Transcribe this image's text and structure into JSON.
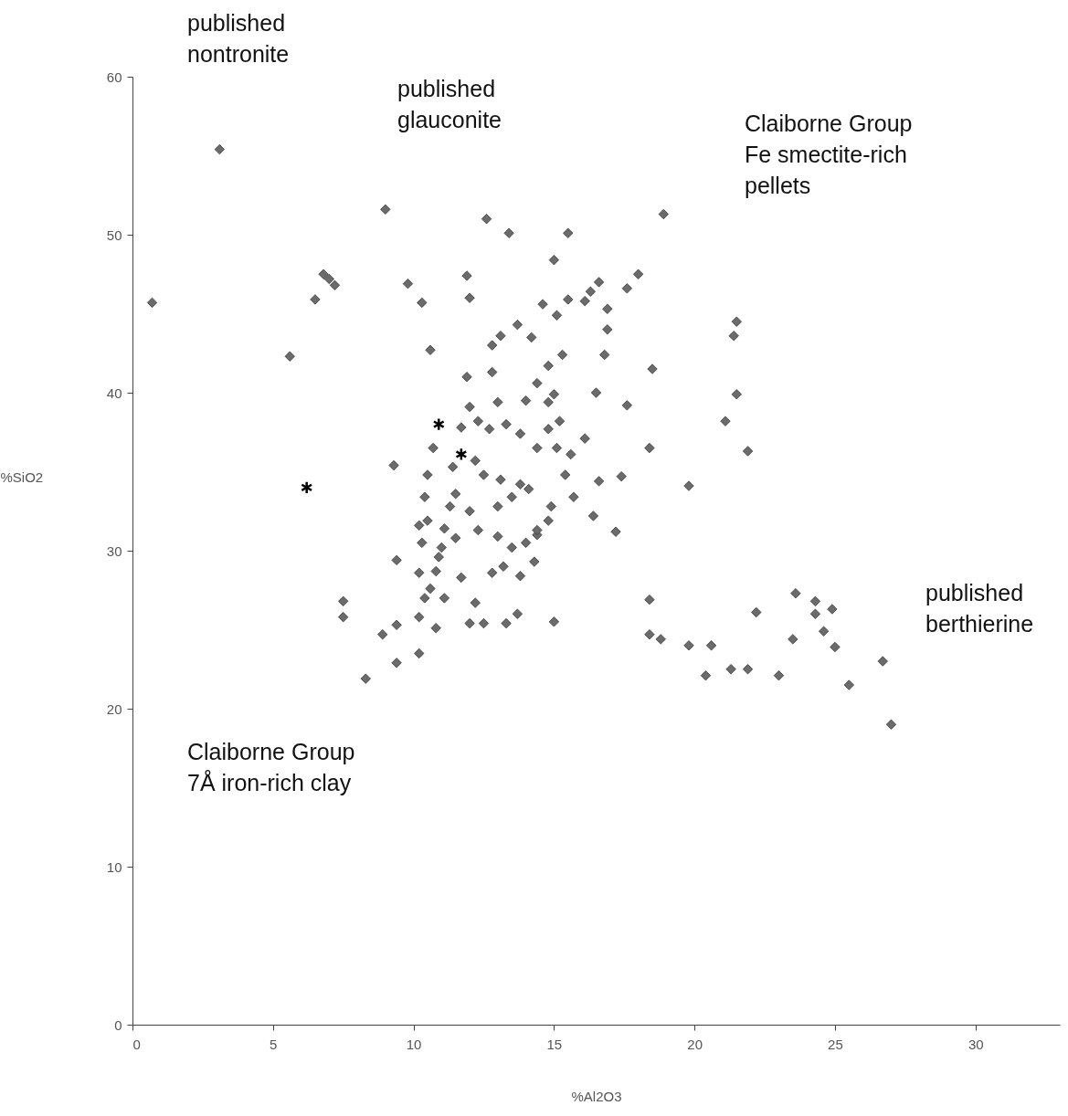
{
  "chart_data": {
    "type": "scatter",
    "xlabel": "%Al2O3",
    "ylabel": "%SiO2",
    "xlim": [
      0,
      33
    ],
    "xticks": [
      0,
      5,
      10,
      15,
      20,
      25,
      30
    ],
    "ylim": [
      0,
      60
    ],
    "yticks": [
      0,
      10,
      20,
      30,
      40,
      50,
      60
    ],
    "grid": false,
    "legend": false,
    "annotations": [
      "published\nnontronite",
      "published\nglauconite",
      "Claiborne Group\nFe smectite-rich\npellets",
      "published\nberthierine",
      "Claiborne Group\n7Å iron-rich clay"
    ],
    "series": [
      {
        "color": "#6b6b6b",
        "marker": "diamond",
        "x": [
          3.1,
          0.7,
          5.6,
          9.0,
          6.8,
          7.2,
          6.5,
          7.0,
          12.6,
          13.4,
          15.5,
          15.0,
          18.9,
          9.8,
          10.3,
          11.9,
          12.0,
          14.6,
          15.1,
          15.5,
          16.6,
          16.3,
          16.1,
          16.9,
          18.0,
          17.6,
          13.7,
          13.1,
          14.2,
          12.8,
          15.3,
          14.8,
          12.8,
          11.9,
          10.6,
          16.9,
          16.8,
          16.5,
          17.6,
          18.5,
          21.5,
          21.4,
          21.5,
          21.1,
          21.9,
          19.8,
          18.4,
          17.4,
          16.1,
          16.6,
          16.4,
          17.2,
          15.4,
          15.7,
          12.0,
          13.0,
          14.0,
          14.4,
          14.8,
          15.0,
          11.7,
          12.3,
          12.7,
          13.3,
          13.8,
          14.8,
          15.2,
          14.4,
          15.1,
          10.7,
          9.3,
          10.5,
          11.4,
          12.2,
          12.5,
          13.1,
          13.8,
          14.1,
          13.5,
          13.0,
          11.5,
          10.4,
          11.3,
          12.0,
          10.5,
          11.1,
          11.5,
          12.3,
          13.0,
          13.5,
          14.0,
          14.4,
          14.8,
          14.9,
          9.4,
          10.2,
          10.8,
          10.6,
          11.1,
          10.4,
          11.7,
          12.2,
          12.8,
          13.2,
          13.8,
          14.3,
          14.4,
          9.4,
          10.2,
          10.8,
          12.0,
          12.5,
          13.3,
          13.7,
          15.0,
          10.2,
          9.4,
          8.9,
          8.3,
          7.5,
          7.5,
          10.2,
          11.0,
          10.3,
          10.9,
          15.6,
          18.4,
          18.4,
          18.8,
          19.8,
          20.6,
          22.2,
          23.6,
          24.3,
          24.3,
          24.9,
          23.5,
          25.0,
          24.6,
          20.4,
          21.3,
          21.9,
          23.0,
          25.5,
          26.7,
          27.0
        ],
        "values": [
          55.4,
          45.7,
          42.3,
          51.6,
          47.5,
          46.8,
          45.9,
          47.2,
          51.0,
          50.1,
          50.1,
          48.4,
          51.3,
          46.9,
          45.7,
          47.4,
          46.0,
          45.6,
          44.9,
          45.9,
          47.0,
          46.4,
          45.8,
          45.3,
          47.5,
          46.6,
          44.3,
          43.6,
          43.5,
          43.0,
          42.4,
          41.7,
          41.3,
          41.0,
          42.7,
          44.0,
          42.4,
          40.0,
          39.2,
          41.5,
          44.5,
          43.6,
          39.9,
          38.2,
          36.3,
          34.1,
          36.5,
          34.7,
          37.1,
          34.4,
          32.2,
          31.2,
          34.8,
          33.4,
          39.1,
          39.4,
          39.5,
          40.6,
          39.4,
          39.9,
          37.8,
          38.2,
          37.7,
          38.0,
          37.4,
          37.7,
          38.2,
          36.5,
          36.5,
          36.5,
          35.4,
          34.8,
          35.3,
          35.7,
          34.8,
          34.5,
          34.2,
          33.9,
          33.4,
          32.8,
          33.6,
          33.4,
          32.8,
          32.5,
          31.9,
          31.4,
          30.8,
          31.3,
          30.9,
          30.2,
          30.5,
          31.0,
          31.9,
          32.8,
          29.4,
          28.6,
          28.7,
          27.6,
          27.0,
          27.0,
          28.3,
          26.7,
          28.6,
          29.0,
          28.4,
          29.3,
          31.3,
          25.3,
          25.8,
          25.1,
          25.4,
          25.4,
          25.4,
          26.0,
          25.5,
          23.5,
          22.9,
          24.7,
          21.9,
          26.8,
          25.8,
          31.6,
          30.2,
          30.5,
          29.6,
          36.1,
          26.9,
          24.7,
          24.4,
          24.0,
          24.0,
          26.1,
          27.3,
          26.8,
          26.0,
          26.3,
          24.4,
          23.9,
          24.9,
          22.1,
          22.5,
          22.5,
          22.1,
          21.5,
          23.0,
          19.0
        ]
      },
      {
        "color": "#000000",
        "marker": "cross",
        "x": [
          6.2,
          10.9,
          11.7
        ],
        "values": [
          34.0,
          38.0,
          36.1
        ]
      }
    ]
  }
}
